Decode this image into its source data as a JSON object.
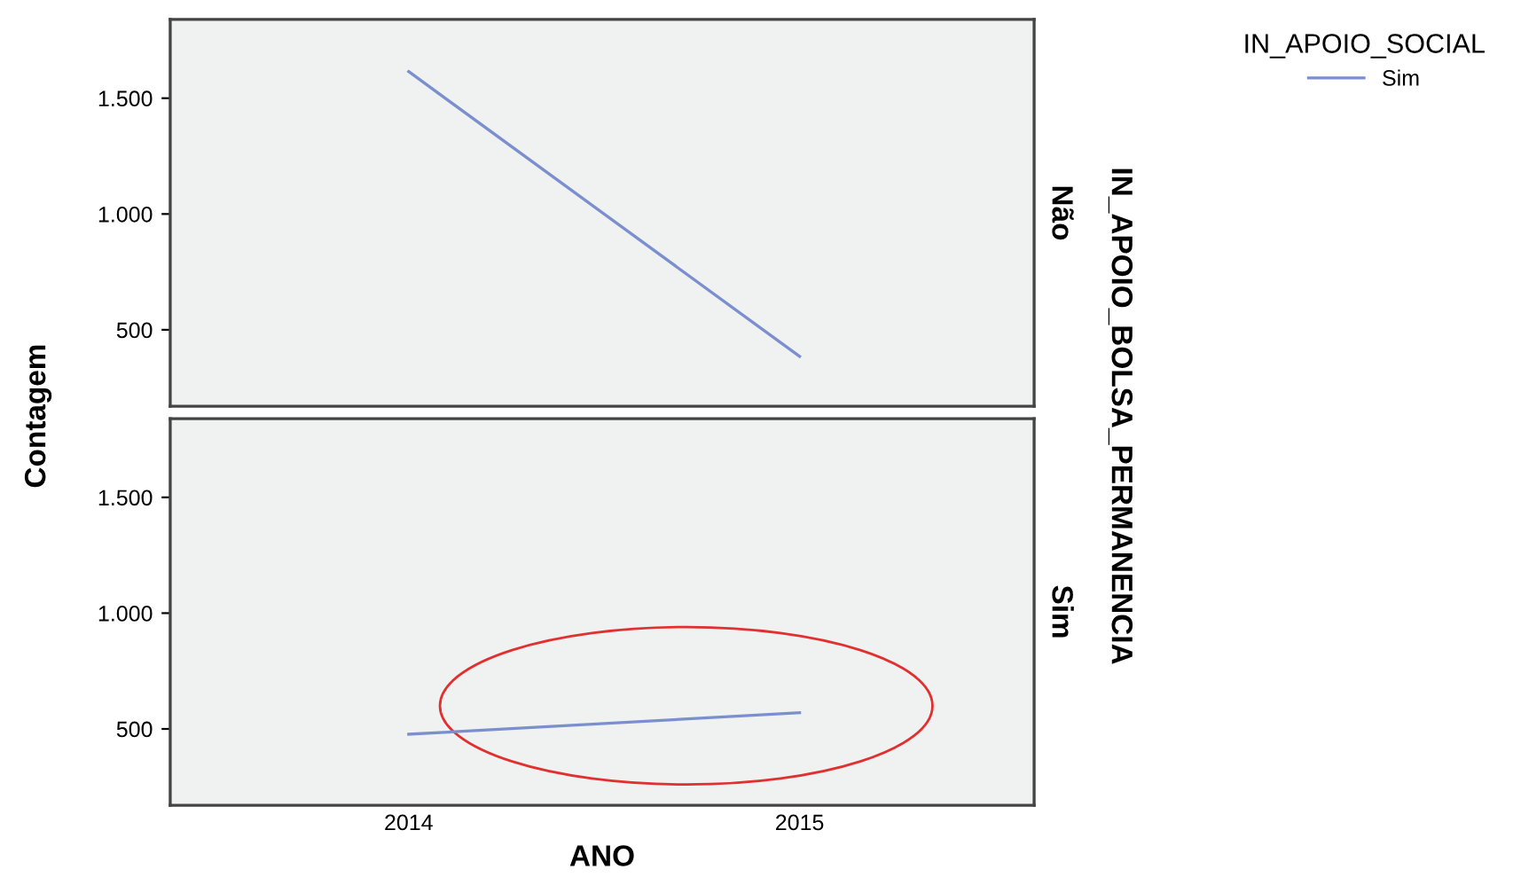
{
  "chart_data": [
    {
      "type": "line",
      "categories": [
        "2014",
        "2015"
      ],
      "ylabel": "Contagem",
      "legend_title": "IN_APOIO_SOCIAL",
      "legend": "top right",
      "tick_labels": "y",
      "series": [
        {
          "name": "Sim",
          "color": "#7b8fcf",
          "values": [
            1615,
            385
          ]
        }
      ],
      "ylim": [
        170,
        1840
      ],
      "yticks": [
        {
          "value": 500,
          "label": "500"
        },
        {
          "value": 1000,
          "label": "1.000"
        },
        {
          "value": 1500,
          "label": "1.500"
        }
      ],
      "annotations": [
        "Não",
        "IN_APOIO_BOLSA_PERMANENCIA"
      ]
    },
    {
      "type": "line",
      "categories": [
        "2014",
        "2015"
      ],
      "xlabel": "ANO",
      "series": [
        {
          "color": "#7b8fcf",
          "values": [
            477,
            570
          ]
        }
      ],
      "ylim": [
        170,
        1840
      ],
      "yticks": [
        {
          "value": 500,
          "label": "500"
        },
        {
          "value": 1000,
          "label": "1.000"
        },
        {
          "value": 1500,
          "label": "1.500"
        }
      ],
      "annotations": [
        "Sim"
      ]
    }
  ]
}
